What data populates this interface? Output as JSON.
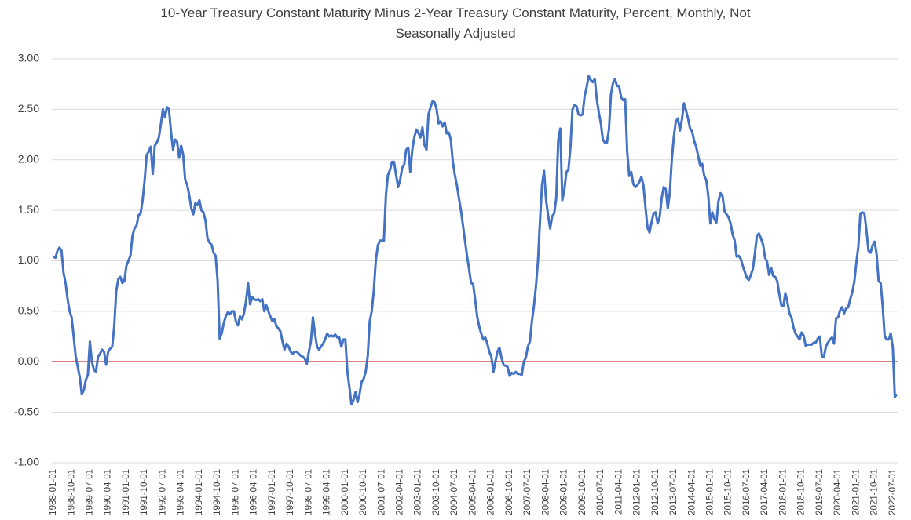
{
  "chart_data": {
    "type": "line",
    "title": "10-Year Treasury Constant Maturity Minus 2-Year Treasury Constant Maturity, Percent, Monthly, Not Seasonally Adjusted",
    "color": "#4472c4",
    "zero_line_color": "#c00000",
    "grid": true,
    "ylim": [
      -1,
      3
    ],
    "yticks": [
      {
        "value": -1,
        "label": "-1.00"
      },
      {
        "value": -0.5,
        "label": "-0.50"
      },
      {
        "value": 0,
        "label": "0.00"
      },
      {
        "value": 0.5,
        "label": "0.50"
      },
      {
        "value": 1,
        "label": "1.00"
      },
      {
        "value": 1.5,
        "label": "1.50"
      },
      {
        "value": 2,
        "label": "2.00"
      },
      {
        "value": 2.5,
        "label": "2.50"
      },
      {
        "value": 3,
        "label": "3.00"
      }
    ],
    "categories": [
      "1988-01-01",
      null,
      null,
      null,
      null,
      null,
      null,
      null,
      null,
      "1988-10-01",
      null,
      null,
      null,
      null,
      null,
      null,
      null,
      null,
      "1989-07-01",
      null,
      null,
      null,
      null,
      null,
      null,
      null,
      null,
      "1990-04-01",
      null,
      null,
      null,
      null,
      null,
      null,
      null,
      null,
      "1991-01-01",
      null,
      null,
      null,
      null,
      null,
      null,
      null,
      null,
      "1991-10-01",
      null,
      null,
      null,
      null,
      null,
      null,
      null,
      null,
      "1992-07-01",
      null,
      null,
      null,
      null,
      null,
      null,
      null,
      null,
      "1993-04-01",
      null,
      null,
      null,
      null,
      null,
      null,
      null,
      null,
      "1994-01-01",
      null,
      null,
      null,
      null,
      null,
      null,
      null,
      null,
      "1994-10-01",
      null,
      null,
      null,
      null,
      null,
      null,
      null,
      null,
      "1995-07-01",
      null,
      null,
      null,
      null,
      null,
      null,
      null,
      null,
      "1996-04-01",
      null,
      null,
      null,
      null,
      null,
      null,
      null,
      null,
      "1997-01-01",
      null,
      null,
      null,
      null,
      null,
      null,
      null,
      null,
      "1997-10-01",
      null,
      null,
      null,
      null,
      null,
      null,
      null,
      null,
      "1998-07-01",
      null,
      null,
      null,
      null,
      null,
      null,
      null,
      null,
      "1999-04-01",
      null,
      null,
      null,
      null,
      null,
      null,
      null,
      null,
      "2000-01-01",
      null,
      null,
      null,
      null,
      null,
      null,
      null,
      null,
      "2000-10-01",
      null,
      null,
      null,
      null,
      null,
      null,
      null,
      null,
      "2001-07-01",
      null,
      null,
      null,
      null,
      null,
      null,
      null,
      null,
      "2002-04-01",
      null,
      null,
      null,
      null,
      null,
      null,
      null,
      null,
      "2003-01-01",
      null,
      null,
      null,
      null,
      null,
      null,
      null,
      null,
      "2003-10-01",
      null,
      null,
      null,
      null,
      null,
      null,
      null,
      null,
      "2004-07-01",
      null,
      null,
      null,
      null,
      null,
      null,
      null,
      null,
      "2005-04-01",
      null,
      null,
      null,
      null,
      null,
      null,
      null,
      null,
      "2006-01-01",
      null,
      null,
      null,
      null,
      null,
      null,
      null,
      null,
      "2006-10-01",
      null,
      null,
      null,
      null,
      null,
      null,
      null,
      null,
      "2007-07-01",
      null,
      null,
      null,
      null,
      null,
      null,
      null,
      null,
      "2008-04-01",
      null,
      null,
      null,
      null,
      null,
      null,
      null,
      null,
      "2009-01-01",
      null,
      null,
      null,
      null,
      null,
      null,
      null,
      null,
      "2009-10-01",
      null,
      null,
      null,
      null,
      null,
      null,
      null,
      null,
      "2010-07-01",
      null,
      null,
      null,
      null,
      null,
      null,
      null,
      null,
      "2011-04-01",
      null,
      null,
      null,
      null,
      null,
      null,
      null,
      null,
      "2012-01-01",
      null,
      null,
      null,
      null,
      null,
      null,
      null,
      null,
      "2012-10-01",
      null,
      null,
      null,
      null,
      null,
      null,
      null,
      null,
      "2013-07-01",
      null,
      null,
      null,
      null,
      null,
      null,
      null,
      null,
      "2014-04-01",
      null,
      null,
      null,
      null,
      null,
      null,
      null,
      null,
      "2015-01-01",
      null,
      null,
      null,
      null,
      null,
      null,
      null,
      null,
      "2015-10-01",
      null,
      null,
      null,
      null,
      null,
      null,
      null,
      null,
      "2016-07-01",
      null,
      null,
      null,
      null,
      null,
      null,
      null,
      null,
      "2017-04-01",
      null,
      null,
      null,
      null,
      null,
      null,
      null,
      null,
      "2018-01-01",
      null,
      null,
      null,
      null,
      null,
      null,
      null,
      null,
      "2018-10-01",
      null,
      null,
      null,
      null,
      null,
      null,
      null,
      null,
      "2019-07-01",
      null,
      null,
      null,
      null,
      null,
      null,
      null,
      null,
      "2020-04-01",
      null,
      null,
      null,
      null,
      null,
      null,
      null,
      null,
      "2021-01-01",
      null,
      null,
      null,
      null,
      null,
      null,
      null,
      null,
      "2021-10-01",
      null,
      null,
      null,
      null,
      null,
      null,
      null,
      null,
      "2022-07-01",
      null,
      null
    ],
    "values": [
      1.04,
      1.03,
      1.1,
      1.13,
      1.1,
      0.88,
      0.78,
      0.62,
      0.5,
      0.44,
      0.25,
      0.05,
      -0.05,
      -0.15,
      -0.32,
      -0.28,
      -0.18,
      -0.13,
      0.2,
      0.0,
      -0.08,
      -0.1,
      0.05,
      0.08,
      0.12,
      0.1,
      -0.03,
      0.1,
      0.13,
      0.15,
      0.35,
      0.7,
      0.82,
      0.84,
      0.78,
      0.8,
      0.95,
      1.0,
      1.05,
      1.25,
      1.32,
      1.35,
      1.45,
      1.47,
      1.6,
      1.8,
      2.05,
      2.08,
      2.13,
      1.86,
      2.14,
      2.17,
      2.22,
      2.35,
      2.5,
      2.42,
      2.52,
      2.5,
      2.28,
      2.1,
      2.2,
      2.18,
      2.02,
      2.14,
      2.05,
      1.8,
      1.75,
      1.65,
      1.52,
      1.46,
      1.57,
      1.55,
      1.6,
      1.5,
      1.48,
      1.4,
      1.22,
      1.18,
      1.16,
      1.08,
      1.05,
      0.8,
      0.23,
      0.28,
      0.38,
      0.45,
      0.49,
      0.47,
      0.5,
      0.5,
      0.4,
      0.36,
      0.45,
      0.42,
      0.48,
      0.6,
      0.78,
      0.57,
      0.64,
      0.62,
      0.61,
      0.62,
      0.6,
      0.62,
      0.5,
      0.56,
      0.5,
      0.45,
      0.4,
      0.42,
      0.35,
      0.33,
      0.3,
      0.2,
      0.12,
      0.18,
      0.15,
      0.1,
      0.08,
      0.1,
      0.1,
      0.08,
      0.06,
      0.05,
      0.03,
      -0.02,
      0.1,
      0.2,
      0.44,
      0.28,
      0.15,
      0.12,
      0.15,
      0.18,
      0.22,
      0.28,
      0.25,
      0.26,
      0.25,
      0.27,
      0.24,
      0.24,
      0.15,
      0.22,
      0.22,
      -0.1,
      -0.25,
      -0.42,
      -0.38,
      -0.3,
      -0.4,
      -0.32,
      -0.2,
      -0.17,
      -0.1,
      0.05,
      0.4,
      0.5,
      0.7,
      1.0,
      1.15,
      1.2,
      1.2,
      1.2,
      1.65,
      1.85,
      1.9,
      1.98,
      1.98,
      1.85,
      1.73,
      1.8,
      1.92,
      1.95,
      2.1,
      2.12,
      1.88,
      2.1,
      2.22,
      2.3,
      2.27,
      2.22,
      2.32,
      2.15,
      2.1,
      2.45,
      2.52,
      2.58,
      2.57,
      2.5,
      2.36,
      2.38,
      2.33,
      2.37,
      2.26,
      2.27,
      2.2,
      1.98,
      1.85,
      1.75,
      1.62,
      1.5,
      1.35,
      1.2,
      1.05,
      0.92,
      0.78,
      0.77,
      0.62,
      0.45,
      0.35,
      0.28,
      0.22,
      0.24,
      0.18,
      0.1,
      0.05,
      -0.1,
      0.0,
      0.1,
      0.14,
      0.04,
      -0.03,
      -0.04,
      -0.05,
      -0.14,
      -0.11,
      -0.12,
      -0.1,
      -0.12,
      -0.12,
      -0.13,
      0.0,
      0.04,
      0.15,
      0.2,
      0.4,
      0.55,
      0.75,
      1.0,
      1.4,
      1.75,
      1.89,
      1.6,
      1.45,
      1.32,
      1.44,
      1.47,
      1.62,
      2.2,
      2.31,
      1.6,
      1.7,
      1.88,
      1.9,
      2.12,
      2.5,
      2.54,
      2.53,
      2.45,
      2.44,
      2.45,
      2.63,
      2.72,
      2.83,
      2.79,
      2.77,
      2.8,
      2.6,
      2.47,
      2.36,
      2.2,
      2.17,
      2.17,
      2.3,
      2.65,
      2.76,
      2.8,
      2.73,
      2.73,
      2.62,
      2.59,
      2.6,
      2.08,
      1.84,
      1.88,
      1.76,
      1.73,
      1.75,
      1.78,
      1.83,
      1.75,
      1.53,
      1.33,
      1.28,
      1.38,
      1.47,
      1.48,
      1.37,
      1.43,
      1.62,
      1.73,
      1.71,
      1.52,
      1.67,
      2.0,
      2.23,
      2.38,
      2.41,
      2.29,
      2.4,
      2.56,
      2.49,
      2.41,
      2.31,
      2.28,
      2.19,
      2.13,
      2.04,
      1.94,
      1.96,
      1.84,
      1.8,
      1.64,
      1.37,
      1.48,
      1.41,
      1.38,
      1.59,
      1.67,
      1.64,
      1.49,
      1.46,
      1.43,
      1.37,
      1.26,
      1.2,
      1.04,
      1.05,
      1.02,
      0.95,
      0.89,
      0.83,
      0.81,
      0.86,
      0.92,
      1.08,
      1.25,
      1.27,
      1.22,
      1.16,
      1.03,
      0.99,
      0.86,
      0.93,
      0.85,
      0.84,
      0.8,
      0.67,
      0.56,
      0.55,
      0.68,
      0.59,
      0.48,
      0.44,
      0.34,
      0.28,
      0.25,
      0.22,
      0.29,
      0.26,
      0.16,
      0.17,
      0.17,
      0.17,
      0.19,
      0.19,
      0.23,
      0.25,
      0.05,
      0.05,
      0.15,
      0.19,
      0.22,
      0.24,
      0.18,
      0.43,
      0.44,
      0.51,
      0.54,
      0.48,
      0.53,
      0.54,
      0.62,
      0.69,
      0.79,
      0.98,
      1.14,
      1.47,
      1.48,
      1.47,
      1.3,
      1.1,
      1.08,
      1.15,
      1.19,
      1.07,
      0.8,
      0.78,
      0.55,
      0.25,
      0.22,
      0.22,
      0.28,
      0.14,
      -0.35,
      -0.32
    ]
  }
}
